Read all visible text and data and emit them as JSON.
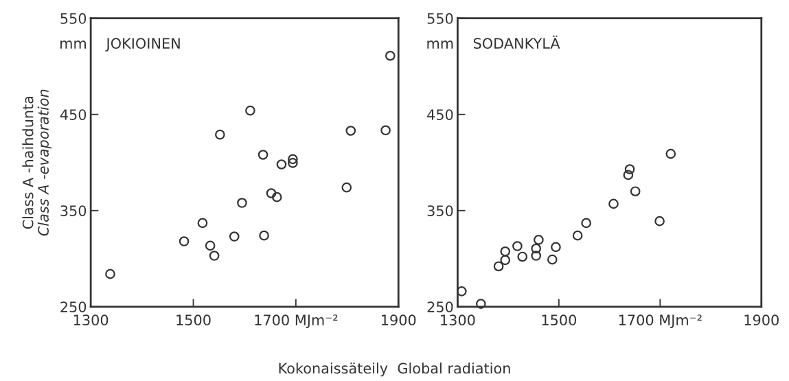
{
  "chart_data": [
    {
      "type": "scatter",
      "title": "JOKIOINEN",
      "ylabel": "Class A -haihdunta\nClass A -evaporation",
      "xlabel": "Kokonaissäteily  Global radiation",
      "annotations": [
        "mm"
      ],
      "marker": "circle",
      "grid": false,
      "xlim": [
        1300,
        1900
      ],
      "xticks": [
        1300,
        1500,
        {
          "value": 1700,
          "label": "1700 MJm⁻²"
        },
        1900
      ],
      "ylim": [
        250,
        550
      ],
      "yticks": [
        250,
        350,
        450,
        550
      ],
      "series": [
        {
          "color": "#333333",
          "x": [
            1884,
            1611,
            1552,
            1807,
            1875,
            1636,
            1672,
            1694,
            1694,
            1799,
            1652,
            1663,
            1595,
            1518,
            1482,
            1533,
            1541,
            1580,
            1638,
            1338
          ],
          "values": [
            511,
            454,
            429,
            433,
            433.5,
            408,
            398,
            403.5,
            399.5,
            374,
            368,
            364,
            358,
            337,
            318,
            313.5,
            303,
            323,
            324,
            284
          ]
        }
      ]
    },
    {
      "type": "scatter",
      "title": "SODANKYLÄ",
      "annotations": [
        "mm"
      ],
      "marker": "circle",
      "grid": false,
      "xlim": [
        1300,
        1900
      ],
      "xticks": [
        1300,
        1500,
        {
          "value": 1700,
          "label": "1700 MJm⁻²"
        },
        1900
      ],
      "ylim": [
        250,
        550
      ],
      "yticks": [
        250,
        350,
        450,
        550
      ],
      "series": [
        {
          "color": "#333333",
          "x": [
            1721,
            1640,
            1637,
            1651,
            1608,
            1699,
            1554,
            1537,
            1460,
            1418,
            1394,
            1394,
            1381,
            1428,
            1455,
            1455,
            1494,
            1487,
            1308,
            1346
          ],
          "values": [
            409,
            393,
            387,
            370,
            357,
            339,
            337,
            324,
            319.5,
            313,
            307.5,
            298.5,
            292,
            302,
            310.5,
            303,
            312,
            299,
            266,
            253
          ]
        }
      ]
    }
  ]
}
